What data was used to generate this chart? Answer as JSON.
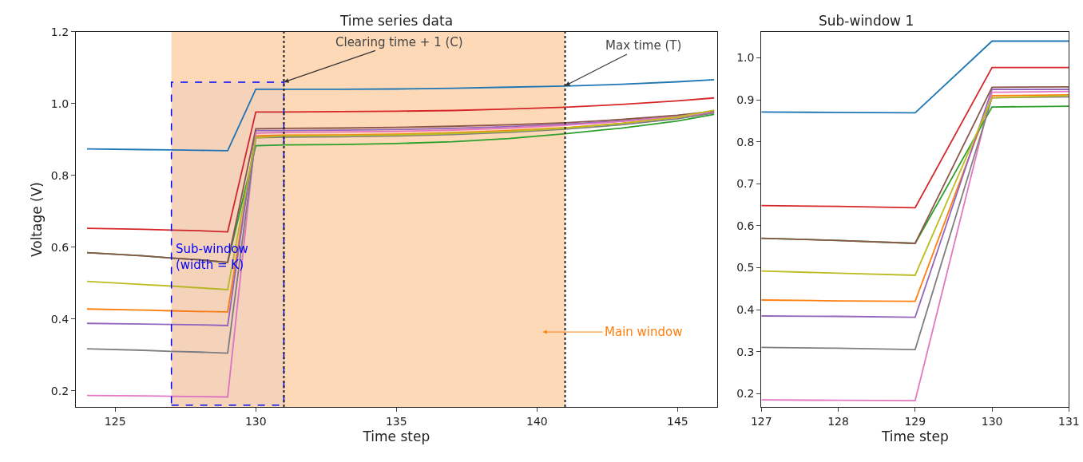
{
  "chart_data": [
    {
      "type": "line",
      "title": "Time series data",
      "xlabel": "Time step",
      "ylabel": "Voltage (V)",
      "grid": false,
      "x": [
        124,
        126,
        127,
        128,
        129,
        130,
        131,
        133,
        135,
        137,
        139,
        141,
        143,
        145,
        146.3
      ],
      "series": [
        {
          "color": "#1f77b4",
          "values": [
            0.874,
            0.872,
            0.871,
            0.87,
            0.869,
            1.04,
            1.04,
            1.04,
            1.041,
            1.043,
            1.046,
            1.049,
            1.054,
            1.061,
            1.067
          ]
        },
        {
          "color": "#ff7f0e",
          "values": [
            0.428,
            0.425,
            0.423,
            0.421,
            0.42,
            0.91,
            0.912,
            0.913,
            0.915,
            0.919,
            0.925,
            0.933,
            0.945,
            0.962,
            0.978
          ]
        },
        {
          "color": "#2ca02c",
          "values": [
            0.585,
            0.576,
            0.57,
            0.565,
            0.558,
            0.883,
            0.885,
            0.886,
            0.889,
            0.894,
            0.903,
            0.916,
            0.932,
            0.952,
            0.97
          ]
        },
        {
          "color": "#d62728",
          "values": [
            0.653,
            0.65,
            0.648,
            0.646,
            0.643,
            0.977,
            0.977,
            0.978,
            0.979,
            0.981,
            0.985,
            0.99,
            0.998,
            1.008,
            1.016
          ]
        },
        {
          "color": "#9467bd",
          "values": [
            0.388,
            0.386,
            0.385,
            0.384,
            0.382,
            0.925,
            0.925,
            0.926,
            0.928,
            0.931,
            0.936,
            0.943,
            0.952,
            0.965,
            0.976
          ]
        },
        {
          "color": "#8c564b",
          "values": [
            0.585,
            0.576,
            0.57,
            0.565,
            0.558,
            0.93,
            0.931,
            0.932,
            0.934,
            0.937,
            0.941,
            0.947,
            0.956,
            0.968,
            0.979
          ]
        },
        {
          "color": "#e377c2",
          "values": [
            0.187,
            0.186,
            0.185,
            0.184,
            0.183,
            0.918,
            0.92,
            0.921,
            0.923,
            0.926,
            0.932,
            0.94,
            0.95,
            0.964,
            0.976
          ]
        },
        {
          "color": "#7f7f7f",
          "values": [
            0.317,
            0.313,
            0.31,
            0.308,
            0.305,
            0.905,
            0.907,
            0.908,
            0.91,
            0.914,
            0.92,
            0.929,
            0.941,
            0.958,
            0.974
          ]
        },
        {
          "color": "#bcbd22",
          "values": [
            0.505,
            0.496,
            0.492,
            0.487,
            0.482,
            0.905,
            0.91,
            0.911,
            0.913,
            0.917,
            0.923,
            0.932,
            0.945,
            0.963,
            0.982
          ]
        }
      ],
      "xlim": [
        123.6,
        146.4
      ],
      "ylim": [
        0.155,
        1.2
      ],
      "xticks": [
        125,
        130,
        135,
        140,
        145
      ],
      "yticks": [
        0.2,
        0.4,
        0.6,
        0.8,
        {
          "value": 1.0,
          "label": "1.0"
        },
        1.2
      ],
      "bands": [
        {
          "axis": "x",
          "from": 127,
          "to": 141,
          "label": "Main window",
          "color": "#fdd9b8"
        },
        {
          "axis": "x",
          "from": 127,
          "to": 131,
          "label": "Sub-window\n(width = K)",
          "color": "#0000ff"
        }
      ],
      "ref_lines": [
        {
          "axis": "x",
          "value": 131,
          "color": "#222222",
          "line_style": "dotted"
        },
        {
          "axis": "x",
          "value": 141,
          "color": "#222222",
          "line_style": "dotted"
        }
      ],
      "annotations": [
        {
          "text": "Clearing time + 1 (C)",
          "x": 131,
          "y": 1.06
        },
        {
          "text": "Max time (T)",
          "x": 141,
          "y": 1.05
        }
      ]
    },
    {
      "type": "line",
      "title": "Sub-window 1",
      "xlabel": "Time step",
      "grid": false,
      "x": [
        127,
        128,
        129,
        130,
        131
      ],
      "series": [
        {
          "color": "#1f77b4",
          "values": [
            0.871,
            0.87,
            0.869,
            1.04,
            1.04
          ]
        },
        {
          "color": "#ff7f0e",
          "values": [
            0.423,
            0.421,
            0.42,
            0.91,
            0.912
          ]
        },
        {
          "color": "#2ca02c",
          "values": [
            0.57,
            0.565,
            0.558,
            0.883,
            0.885
          ]
        },
        {
          "color": "#d62728",
          "values": [
            0.648,
            0.646,
            0.643,
            0.977,
            0.977
          ]
        },
        {
          "color": "#9467bd",
          "values": [
            0.385,
            0.384,
            0.382,
            0.925,
            0.925
          ]
        },
        {
          "color": "#8c564b",
          "values": [
            0.57,
            0.565,
            0.558,
            0.93,
            0.931
          ]
        },
        {
          "color": "#e377c2",
          "values": [
            0.185,
            0.184,
            0.183,
            0.918,
            0.92
          ]
        },
        {
          "color": "#7f7f7f",
          "values": [
            0.31,
            0.308,
            0.305,
            0.905,
            0.907
          ]
        },
        {
          "color": "#bcbd22",
          "values": [
            0.492,
            0.487,
            0.482,
            0.905,
            0.91
          ]
        }
      ],
      "xlim": [
        127,
        131
      ],
      "ylim": [
        0.168,
        1.062
      ],
      "xticks": [
        127,
        128,
        129,
        130,
        131
      ],
      "yticks": [
        0.2,
        0.3,
        0.4,
        0.5,
        0.6,
        0.7,
        0.8,
        0.9,
        {
          "value": 1.0,
          "label": "1.0"
        }
      ]
    }
  ]
}
